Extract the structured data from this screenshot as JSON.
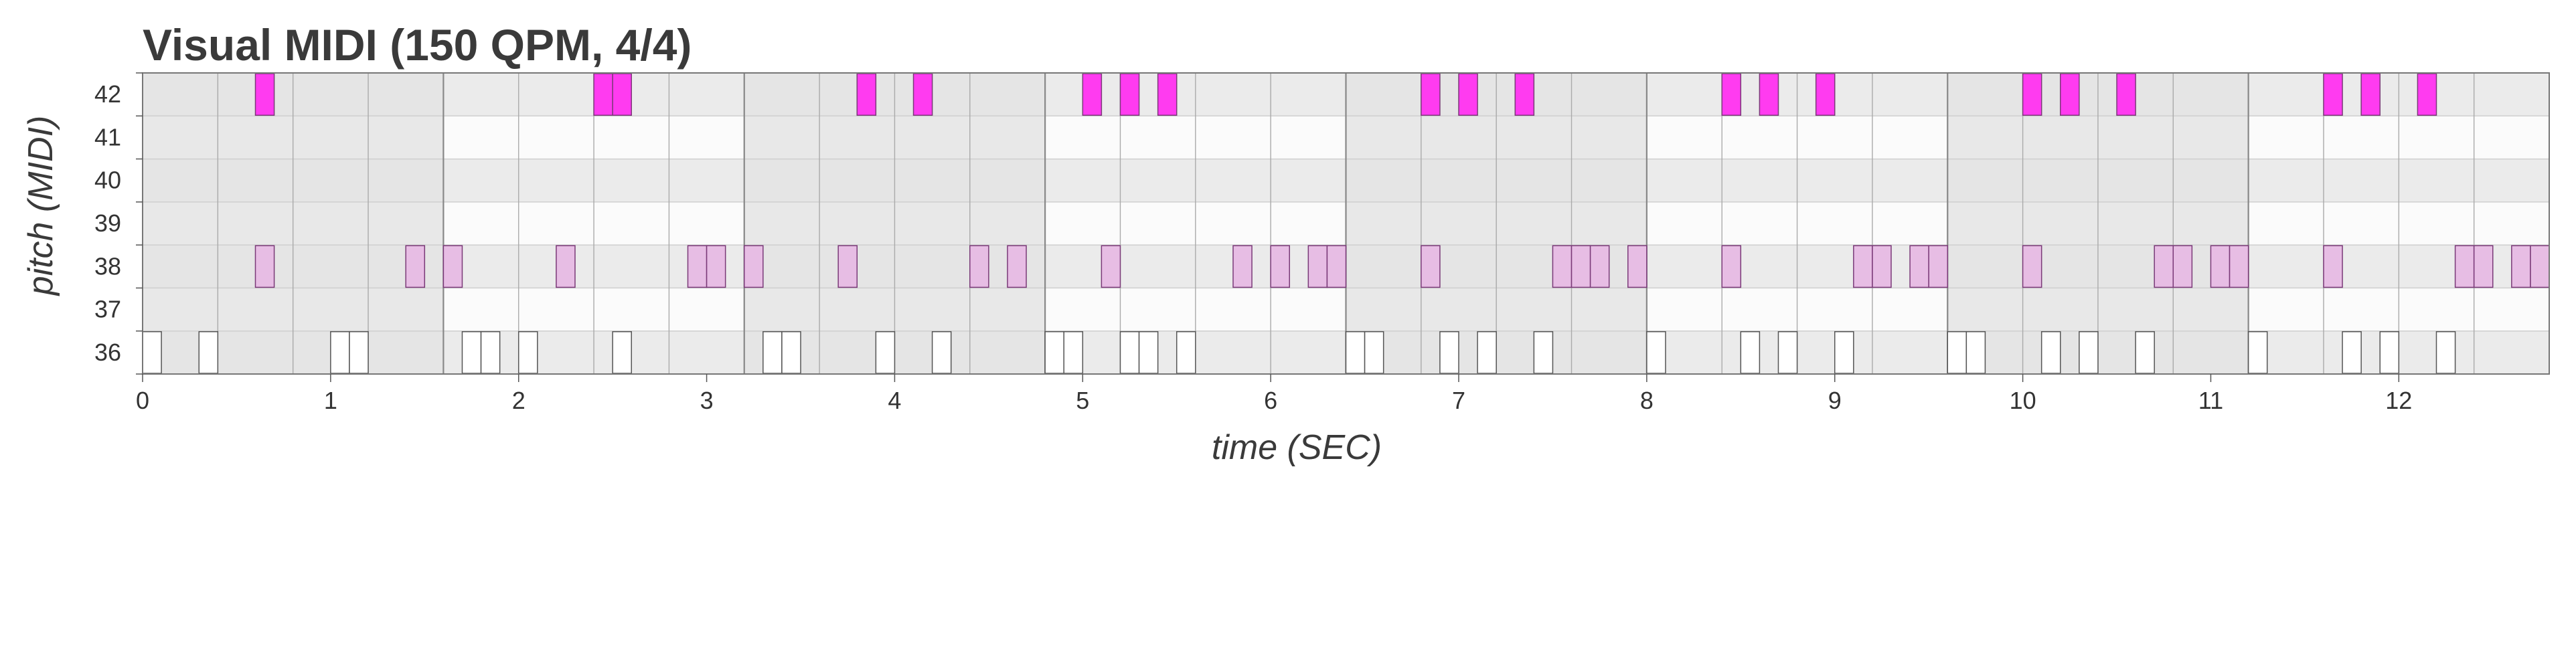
{
  "chart_data": {
    "type": "piano-roll",
    "title": "Visual MIDI (150 QPM, 4/4)",
    "xlabel": "time (SEC)",
    "ylabel": "pitch (MIDI)",
    "xlim": [
      0,
      12.8
    ],
    "x_ticks": [
      0,
      1,
      2,
      3,
      4,
      5,
      6,
      7,
      8,
      9,
      10,
      11,
      12
    ],
    "pitches": [
      36,
      37,
      38,
      39,
      40,
      41,
      42
    ],
    "y_ticks": [
      36,
      37,
      38,
      39,
      40,
      41,
      42
    ],
    "beat_sec": 0.4,
    "bar_sec": 1.6,
    "grid": true,
    "colors": {
      "42": "#ff3bf0",
      "38": "#e7bde4",
      "36": "#ffffff",
      "note_edge": "#7a3a78",
      "white_note_edge": "#555555",
      "bar_shade": "#e4e4e4",
      "row_dark": "#ebebeb",
      "row_light": "#fbfbfb",
      "beat_line": "#aaaaaa",
      "bar_line": "#888888"
    },
    "note_duration": 0.1,
    "notes": [
      {
        "pitch": 42,
        "starts": [
          0.6,
          2.4,
          2.5,
          3.8,
          4.1,
          5.0,
          5.2,
          5.4,
          6.8,
          7.0,
          7.3,
          8.4,
          8.6,
          8.9,
          10.0,
          10.2,
          10.5,
          11.6,
          11.8,
          12.1
        ]
      },
      {
        "pitch": 38,
        "starts": [
          0.6,
          1.4,
          1.6,
          2.2,
          2.9,
          3.0,
          3.2,
          3.7,
          4.4,
          4.6,
          5.1,
          5.8,
          6.0,
          6.2,
          6.3,
          6.8,
          7.5,
          7.6,
          7.7,
          7.9,
          8.4,
          9.1,
          9.2,
          9.4,
          9.5,
          10.0,
          10.7,
          10.8,
          11.0,
          11.1,
          11.6,
          12.3,
          12.4,
          12.6,
          12.7
        ]
      },
      {
        "pitch": 36,
        "starts": [
          0.0,
          0.3,
          1.0,
          1.1,
          1.7,
          1.8,
          2.0,
          2.5,
          3.3,
          3.4,
          3.9,
          4.2,
          4.8,
          4.9,
          5.2,
          5.3,
          5.5,
          6.4,
          6.5,
          6.9,
          7.1,
          7.4,
          8.0,
          8.5,
          8.7,
          9.0,
          9.6,
          9.7,
          10.1,
          10.3,
          10.6,
          11.2,
          11.7,
          11.9,
          12.2
        ]
      }
    ]
  }
}
